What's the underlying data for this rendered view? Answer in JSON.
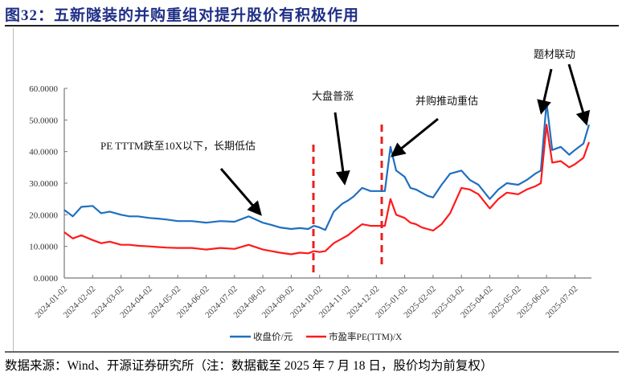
{
  "title": "图32：五新隧装的并购重组对提升股价有积极作用",
  "source": "数据来源：Wind、开源证券研究所（注：数据截至 2025 年 7 月 18 日，股价均为前复权）",
  "colors": {
    "title": "#1f2f86",
    "price": "#1f6fc0",
    "pe": "#ff1a1a",
    "marker": "#e8201e",
    "arrow": "#000000"
  },
  "annotations": [
    {
      "text": "PE TTTM跌至10X以下，长期低估"
    },
    {
      "text": "大盘普涨"
    },
    {
      "text": "并购推动重估"
    },
    {
      "text": "题材联动"
    }
  ],
  "legend": [
    {
      "label": "收盘价/元",
      "color": "#1f6fc0"
    },
    {
      "label": "市盈率PE(TTM)/X",
      "color": "#ff1a1a"
    }
  ],
  "chart_data": {
    "type": "line",
    "title": "五新隧装的并购重组对提升股价有积极作用",
    "xlabel": "",
    "ylabel": "",
    "ylim": [
      0,
      60
    ],
    "yticks": [
      "0.0000",
      "10.0000",
      "20.0000",
      "30.0000",
      "40.0000",
      "50.0000",
      "60.0000"
    ],
    "xticks": [
      "2024-01-02",
      "2024-02-02",
      "2024-03-02",
      "2024-04-02",
      "2024-05-02",
      "2024-06-02",
      "2024-07-02",
      "2024-08-02",
      "2024-09-02",
      "2024-10-02",
      "2024-11-02",
      "2024-12-02",
      "2025-01-02",
      "2025-02-02",
      "2025-03-02",
      "2025-04-02",
      "2025-05-02",
      "2025-06-02",
      "2025-07-02"
    ],
    "grid": false,
    "legend_position": "bottom",
    "vertical_markers": [
      {
        "x": "2024-09-24",
        "style": "red-dashed"
      },
      {
        "x": "2024-12-24",
        "style": "red-dashed"
      }
    ],
    "x": [
      0,
      0.3,
      0.6,
      1,
      1.3,
      1.6,
      2,
      2.3,
      2.6,
      3,
      3.3,
      3.6,
      4,
      4.5,
      5,
      5.5,
      6,
      6.5,
      7,
      7.3,
      7.6,
      8,
      8.3,
      8.6,
      8.8,
      9,
      9.2,
      9.5,
      9.8,
      10,
      10.2,
      10.5,
      10.8,
      11,
      11.3,
      11.5,
      11.7,
      12,
      12.2,
      12.4,
      12.6,
      12.8,
      13,
      13.3,
      13.6,
      14,
      14.3,
      14.6,
      15,
      15.3,
      15.6,
      16,
      16.3,
      16.6,
      16.8,
      17,
      17.2,
      17.5,
      17.8,
      18,
      18.3,
      18.5
    ],
    "series": [
      {
        "name": "收盘价/元",
        "values": [
          21.5,
          19.5,
          22.5,
          22.8,
          20.5,
          21.0,
          20.0,
          19.5,
          19.5,
          19.0,
          18.8,
          18.5,
          18.0,
          18.0,
          17.5,
          18.0,
          17.8,
          19.5,
          17.5,
          16.8,
          16.0,
          15.5,
          15.8,
          15.5,
          16.5,
          16.0,
          15.2,
          21.0,
          23.5,
          24.5,
          25.8,
          28.5,
          27.5,
          27.5,
          27.5,
          41.5,
          34.0,
          32.0,
          28.5,
          28.0,
          27.0,
          26.0,
          25.5,
          29.5,
          33.0,
          34.0,
          31.0,
          29.5,
          25.0,
          28.0,
          30.0,
          29.5,
          31.0,
          33.0,
          34.0,
          55.5,
          40.5,
          41.5,
          39.0,
          40.5,
          42.5,
          48.5
        ]
      },
      {
        "name": "市盈率PE(TTM)/X",
        "values": [
          14.5,
          12.5,
          13.5,
          12.0,
          11.0,
          11.5,
          10.5,
          10.5,
          10.2,
          10.0,
          9.8,
          9.6,
          9.5,
          9.5,
          9.0,
          9.5,
          9.2,
          10.5,
          9.0,
          8.5,
          8.0,
          7.5,
          8.0,
          7.8,
          8.5,
          8.2,
          8.5,
          11.0,
          12.5,
          13.5,
          15.0,
          17.0,
          16.5,
          16.5,
          16.5,
          25.0,
          20.0,
          19.0,
          17.5,
          17.0,
          16.0,
          15.5,
          15.0,
          17.0,
          20.5,
          28.5,
          28.0,
          26.5,
          22.0,
          25.0,
          27.0,
          26.5,
          28.0,
          29.0,
          30.0,
          48.5,
          36.5,
          37.0,
          35.0,
          36.0,
          38.0,
          43.0
        ]
      }
    ]
  }
}
